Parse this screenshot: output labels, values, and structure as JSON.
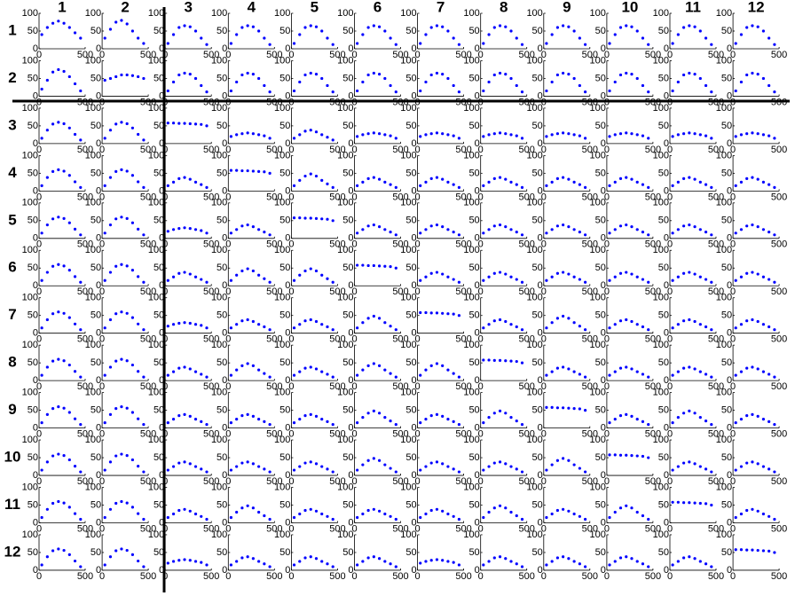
{
  "chart_data": {
    "type": "scatter",
    "row_labels": [
      "1",
      "2",
      "3",
      "4",
      "5",
      "6",
      "7",
      "8",
      "9",
      "10",
      "11",
      "12"
    ],
    "col_labels": [
      "1",
      "2",
      "3",
      "4",
      "5",
      "6",
      "7",
      "8",
      "9",
      "10",
      "11",
      "12"
    ],
    "xlim": [
      0,
      500
    ],
    "ylim": [
      0,
      100
    ],
    "xticks": [
      0,
      500
    ],
    "yticks": [
      0,
      50,
      100
    ],
    "x": [
      30,
      90,
      150,
      210,
      270,
      330,
      390,
      450
    ],
    "color": "#0000ff",
    "cells": [
      [
        [
          40,
          60,
          72,
          78,
          72,
          60,
          45,
          30
        ],
        [
          30,
          55,
          75,
          80,
          70,
          50,
          30,
          15
        ],
        [
          15,
          40,
          60,
          65,
          62,
          50,
          30,
          12
        ],
        [
          15,
          40,
          60,
          65,
          62,
          50,
          30,
          12
        ],
        [
          15,
          40,
          60,
          65,
          62,
          50,
          30,
          12
        ],
        [
          15,
          40,
          60,
          65,
          62,
          50,
          30,
          12
        ],
        [
          15,
          40,
          60,
          65,
          62,
          50,
          30,
          12
        ],
        [
          15,
          40,
          60,
          65,
          62,
          50,
          30,
          12
        ],
        [
          15,
          40,
          60,
          65,
          62,
          50,
          30,
          12
        ],
        [
          15,
          40,
          60,
          65,
          62,
          50,
          30,
          12
        ],
        [
          15,
          40,
          60,
          65,
          62,
          50,
          30,
          12
        ],
        [
          15,
          40,
          60,
          65,
          62,
          50,
          30,
          12
        ]
      ],
      [
        [
          20,
          45,
          68,
          75,
          70,
          55,
          35,
          15
        ],
        [
          45,
          50,
          55,
          60,
          60,
          58,
          55,
          50
        ],
        [
          15,
          40,
          60,
          65,
          62,
          50,
          30,
          12
        ],
        [
          15,
          40,
          60,
          65,
          62,
          50,
          30,
          12
        ],
        [
          15,
          40,
          60,
          65,
          62,
          50,
          30,
          12
        ],
        [
          15,
          40,
          60,
          65,
          62,
          50,
          30,
          12
        ],
        [
          15,
          40,
          60,
          65,
          62,
          50,
          30,
          12
        ],
        [
          15,
          40,
          60,
          65,
          62,
          50,
          30,
          12
        ],
        [
          15,
          40,
          60,
          65,
          62,
          50,
          30,
          12
        ],
        [
          15,
          40,
          60,
          65,
          62,
          50,
          30,
          12
        ],
        [
          15,
          40,
          60,
          65,
          62,
          50,
          30,
          12
        ],
        [
          15,
          40,
          60,
          65,
          62,
          50,
          30,
          12
        ]
      ],
      [
        [
          15,
          38,
          55,
          60,
          56,
          44,
          26,
          10
        ],
        [
          15,
          38,
          55,
          60,
          56,
          44,
          26,
          10
        ],
        [
          58,
          58,
          57,
          57,
          56,
          55,
          54,
          50
        ],
        [
          20,
          25,
          28,
          30,
          28,
          25,
          22,
          15
        ],
        [
          15,
          25,
          35,
          38,
          33,
          25,
          18,
          10
        ],
        [
          20,
          25,
          28,
          30,
          28,
          25,
          22,
          15
        ],
        [
          20,
          25,
          28,
          30,
          28,
          25,
          22,
          15
        ],
        [
          20,
          25,
          28,
          30,
          28,
          25,
          22,
          15
        ],
        [
          20,
          25,
          28,
          30,
          28,
          25,
          22,
          15
        ],
        [
          20,
          25,
          28,
          30,
          28,
          25,
          22,
          15
        ],
        [
          20,
          25,
          28,
          30,
          28,
          25,
          22,
          15
        ],
        [
          20,
          25,
          28,
          30,
          28,
          25,
          22,
          15
        ]
      ],
      [
        [
          15,
          38,
          55,
          60,
          56,
          44,
          26,
          10
        ],
        [
          15,
          38,
          55,
          60,
          56,
          44,
          26,
          10
        ],
        [
          15,
          25,
          35,
          38,
          33,
          25,
          18,
          10
        ],
        [
          58,
          58,
          57,
          57,
          56,
          55,
          54,
          50
        ],
        [
          15,
          30,
          42,
          48,
          42,
          30,
          20,
          10
        ],
        [
          15,
          25,
          35,
          38,
          33,
          25,
          18,
          10
        ],
        [
          15,
          25,
          35,
          38,
          33,
          25,
          18,
          10
        ],
        [
          15,
          25,
          35,
          38,
          33,
          25,
          18,
          10
        ],
        [
          15,
          25,
          35,
          38,
          33,
          25,
          18,
          10
        ],
        [
          15,
          25,
          35,
          38,
          33,
          25,
          18,
          10
        ],
        [
          15,
          25,
          35,
          38,
          33,
          25,
          18,
          10
        ],
        [
          15,
          25,
          35,
          38,
          33,
          25,
          18,
          10
        ]
      ],
      [
        [
          15,
          38,
          55,
          60,
          56,
          44,
          26,
          10
        ],
        [
          15,
          38,
          55,
          60,
          56,
          44,
          26,
          10
        ],
        [
          20,
          25,
          28,
          30,
          28,
          25,
          22,
          15
        ],
        [
          15,
          25,
          35,
          38,
          33,
          25,
          18,
          10
        ],
        [
          58,
          58,
          57,
          57,
          56,
          55,
          54,
          50
        ],
        [
          15,
          25,
          35,
          38,
          33,
          25,
          18,
          10
        ],
        [
          15,
          25,
          35,
          38,
          33,
          25,
          18,
          10
        ],
        [
          15,
          25,
          35,
          38,
          33,
          25,
          18,
          10
        ],
        [
          15,
          25,
          35,
          38,
          33,
          25,
          18,
          10
        ],
        [
          15,
          25,
          35,
          38,
          33,
          25,
          18,
          10
        ],
        [
          15,
          25,
          35,
          38,
          33,
          25,
          18,
          10
        ],
        [
          15,
          25,
          35,
          38,
          33,
          25,
          18,
          10
        ]
      ],
      [
        [
          15,
          38,
          55,
          60,
          56,
          44,
          26,
          10
        ],
        [
          15,
          38,
          55,
          60,
          56,
          44,
          26,
          10
        ],
        [
          15,
          25,
          35,
          38,
          33,
          25,
          18,
          10
        ],
        [
          15,
          30,
          42,
          48,
          42,
          30,
          20,
          10
        ],
        [
          15,
          30,
          42,
          48,
          42,
          30,
          20,
          10
        ],
        [
          58,
          58,
          57,
          57,
          56,
          55,
          54,
          50
        ],
        [
          15,
          25,
          35,
          38,
          33,
          25,
          18,
          10
        ],
        [
          15,
          25,
          35,
          38,
          33,
          25,
          18,
          10
        ],
        [
          15,
          25,
          35,
          38,
          33,
          25,
          18,
          10
        ],
        [
          15,
          25,
          35,
          38,
          33,
          25,
          18,
          10
        ],
        [
          15,
          25,
          35,
          38,
          33,
          25,
          18,
          10
        ],
        [
          15,
          25,
          35,
          38,
          33,
          25,
          18,
          10
        ]
      ],
      [
        [
          15,
          38,
          55,
          60,
          56,
          44,
          26,
          10
        ],
        [
          15,
          38,
          55,
          60,
          56,
          44,
          26,
          10
        ],
        [
          20,
          25,
          28,
          30,
          28,
          25,
          22,
          15
        ],
        [
          15,
          25,
          35,
          38,
          33,
          25,
          18,
          10
        ],
        [
          15,
          25,
          35,
          38,
          33,
          25,
          18,
          10
        ],
        [
          15,
          30,
          42,
          48,
          42,
          30,
          20,
          10
        ],
        [
          58,
          58,
          57,
          57,
          56,
          55,
          54,
          50
        ],
        [
          15,
          25,
          35,
          38,
          33,
          25,
          18,
          10
        ],
        [
          15,
          30,
          42,
          48,
          42,
          30,
          20,
          10
        ],
        [
          15,
          25,
          35,
          38,
          33,
          25,
          18,
          10
        ],
        [
          15,
          25,
          35,
          38,
          33,
          25,
          18,
          10
        ],
        [
          15,
          25,
          35,
          38,
          33,
          25,
          18,
          10
        ]
      ],
      [
        [
          15,
          38,
          55,
          60,
          56,
          44,
          26,
          10
        ],
        [
          15,
          38,
          55,
          60,
          56,
          44,
          26,
          10
        ],
        [
          15,
          25,
          35,
          38,
          33,
          25,
          18,
          10
        ],
        [
          15,
          30,
          42,
          48,
          42,
          30,
          20,
          10
        ],
        [
          15,
          25,
          35,
          38,
          33,
          25,
          18,
          10
        ],
        [
          15,
          30,
          42,
          48,
          42,
          30,
          20,
          10
        ],
        [
          15,
          30,
          42,
          48,
          42,
          30,
          20,
          10
        ],
        [
          58,
          58,
          57,
          57,
          56,
          55,
          54,
          50
        ],
        [
          15,
          25,
          35,
          38,
          33,
          25,
          18,
          10
        ],
        [
          15,
          25,
          35,
          38,
          33,
          25,
          18,
          10
        ],
        [
          15,
          25,
          35,
          38,
          33,
          25,
          18,
          10
        ],
        [
          15,
          25,
          35,
          38,
          33,
          25,
          18,
          10
        ]
      ],
      [
        [
          15,
          38,
          55,
          60,
          56,
          44,
          26,
          10
        ],
        [
          15,
          38,
          55,
          60,
          56,
          44,
          26,
          10
        ],
        [
          15,
          25,
          35,
          38,
          33,
          25,
          18,
          10
        ],
        [
          15,
          25,
          35,
          38,
          33,
          25,
          18,
          10
        ],
        [
          15,
          25,
          35,
          38,
          33,
          25,
          18,
          10
        ],
        [
          15,
          30,
          42,
          48,
          42,
          30,
          20,
          10
        ],
        [
          15,
          25,
          35,
          38,
          33,
          25,
          18,
          10
        ],
        [
          15,
          30,
          42,
          48,
          42,
          30,
          20,
          10
        ],
        [
          58,
          58,
          57,
          57,
          56,
          55,
          54,
          50
        ],
        [
          15,
          25,
          35,
          38,
          33,
          25,
          18,
          10
        ],
        [
          15,
          30,
          42,
          48,
          42,
          30,
          20,
          10
        ],
        [
          15,
          25,
          35,
          38,
          33,
          25,
          18,
          10
        ]
      ],
      [
        [
          15,
          38,
          55,
          60,
          56,
          44,
          26,
          10
        ],
        [
          15,
          38,
          55,
          60,
          56,
          44,
          26,
          10
        ],
        [
          15,
          25,
          35,
          38,
          33,
          25,
          18,
          10
        ],
        [
          15,
          25,
          35,
          38,
          33,
          25,
          18,
          10
        ],
        [
          15,
          25,
          35,
          38,
          33,
          25,
          18,
          10
        ],
        [
          15,
          30,
          42,
          48,
          42,
          30,
          20,
          10
        ],
        [
          15,
          25,
          35,
          38,
          33,
          25,
          18,
          10
        ],
        [
          15,
          25,
          35,
          38,
          33,
          25,
          18,
          10
        ],
        [
          15,
          30,
          42,
          48,
          42,
          30,
          20,
          10
        ],
        [
          58,
          58,
          57,
          57,
          56,
          55,
          54,
          50
        ],
        [
          15,
          25,
          35,
          38,
          33,
          25,
          18,
          10
        ],
        [
          15,
          25,
          35,
          38,
          33,
          25,
          18,
          10
        ]
      ],
      [
        [
          15,
          38,
          55,
          60,
          56,
          44,
          26,
          10
        ],
        [
          15,
          38,
          55,
          60,
          56,
          44,
          26,
          10
        ],
        [
          15,
          25,
          35,
          38,
          33,
          25,
          18,
          10
        ],
        [
          15,
          30,
          42,
          48,
          42,
          30,
          20,
          10
        ],
        [
          15,
          25,
          35,
          38,
          33,
          25,
          18,
          10
        ],
        [
          15,
          25,
          35,
          38,
          33,
          25,
          18,
          10
        ],
        [
          15,
          25,
          35,
          38,
          33,
          25,
          18,
          10
        ],
        [
          15,
          30,
          42,
          48,
          42,
          30,
          20,
          10
        ],
        [
          15,
          25,
          35,
          38,
          33,
          25,
          18,
          10
        ],
        [
          15,
          30,
          42,
          48,
          42,
          30,
          20,
          10
        ],
        [
          58,
          58,
          57,
          57,
          56,
          55,
          54,
          50
        ],
        [
          15,
          25,
          35,
          38,
          33,
          25,
          18,
          10
        ]
      ],
      [
        [
          15,
          38,
          55,
          60,
          56,
          44,
          26,
          10
        ],
        [
          15,
          38,
          55,
          60,
          56,
          44,
          26,
          10
        ],
        [
          20,
          25,
          28,
          30,
          28,
          25,
          22,
          15
        ],
        [
          15,
          25,
          35,
          38,
          33,
          25,
          18,
          10
        ],
        [
          15,
          25,
          35,
          38,
          33,
          25,
          18,
          10
        ],
        [
          15,
          25,
          35,
          38,
          33,
          25,
          18,
          10
        ],
        [
          20,
          25,
          28,
          30,
          28,
          25,
          22,
          15
        ],
        [
          15,
          25,
          35,
          38,
          33,
          25,
          18,
          10
        ],
        [
          15,
          25,
          35,
          38,
          33,
          25,
          18,
          10
        ],
        [
          15,
          25,
          35,
          38,
          33,
          25,
          18,
          10
        ],
        [
          15,
          25,
          35,
          38,
          33,
          25,
          18,
          10
        ],
        [
          58,
          58,
          57,
          57,
          56,
          55,
          54,
          50
        ]
      ]
    ]
  }
}
